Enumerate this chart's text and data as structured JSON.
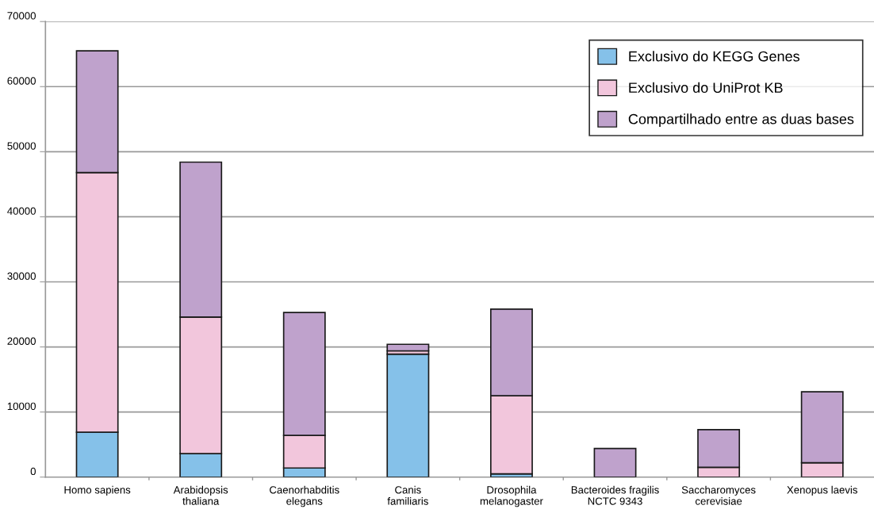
{
  "chart_data": {
    "type": "bar",
    "stacked": true,
    "categories": [
      "Homo sapiens",
      "Arabidopsis\nthaliana",
      "Caenorhabditis\nelegans",
      "Canis\nfamiliaris",
      "Drosophila\nmelanogaster",
      "Bacteroides fragilis\nNCTC 9343",
      "Saccharomyces\ncerevisiae",
      "Xenopus laevis"
    ],
    "series": [
      {
        "name": "Exclusivo do KEGG Genes",
        "color": "#85c1e9",
        "values": [
          6900,
          3600,
          1400,
          18900,
          500,
          null,
          null,
          null
        ]
      },
      {
        "name": "Exclusivo do UniProt KB",
        "color": "#f2c6dc",
        "values": [
          39900,
          21000,
          5000,
          500,
          12000,
          0,
          1500,
          2200
        ]
      },
      {
        "name": "Compartilhado entre as duas bases",
        "color": "#bfa2cc",
        "values": [
          18700,
          23800,
          18900,
          1000,
          13300,
          4400,
          5800,
          10900
        ]
      }
    ],
    "ylim": [
      0,
      70000
    ],
    "yticks": [
      0,
      10000,
      20000,
      30000,
      40000,
      50000,
      60000,
      70000
    ],
    "grid": "y",
    "legend": "top right"
  }
}
